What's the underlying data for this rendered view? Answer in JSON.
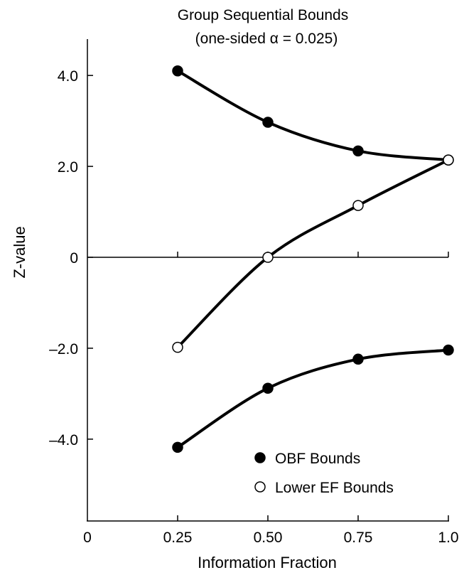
{
  "chart_data": {
    "type": "line",
    "title": "Group Sequential Bounds",
    "subtitle": "(one-sided α = 0.025)",
    "xlabel": "Information Fraction",
    "ylabel": "Z-value",
    "xlim": [
      0,
      1.0
    ],
    "ylim": [
      -5.8,
      4.8
    ],
    "x_ticks": [
      {
        "value": 0,
        "label": "0"
      },
      {
        "value": 0.25,
        "label": "0.25"
      },
      {
        "value": 0.5,
        "label": "0.50"
      },
      {
        "value": 0.75,
        "label": "0.75"
      },
      {
        "value": 1.0,
        "label": "1.0"
      }
    ],
    "y_ticks": [
      {
        "value": 4,
        "label": "4.0"
      },
      {
        "value": 2,
        "label": "2.0"
      },
      {
        "value": 0,
        "label": "0"
      },
      {
        "value": -2,
        "label": "–2.0"
      },
      {
        "value": -4,
        "label": "–4.0"
      }
    ],
    "zero_line": true,
    "grid": false,
    "legend_position": "bottom-right",
    "series": [
      {
        "name": "OBF Bounds",
        "marker": "filled-circle",
        "curves": [
          {
            "x": [
              0.25,
              0.5,
              0.75,
              1.0
            ],
            "y": [
              4.1,
              2.97,
              2.34,
              2.14
            ]
          },
          {
            "x": [
              0.25,
              0.5,
              0.75,
              1.0
            ],
            "y": [
              -4.18,
              -2.88,
              -2.24,
              -2.04
            ]
          }
        ]
      },
      {
        "name": "Lower EF Bounds",
        "marker": "open-circle",
        "curves": [
          {
            "x": [
              0.25,
              0.5,
              0.75,
              1.0
            ],
            "y": [
              -1.98,
              0.0,
              1.14,
              2.14
            ]
          }
        ]
      }
    ],
    "colors": {
      "line": "#000000",
      "filled_marker": "#000000",
      "open_marker_fill": "#ffffff"
    }
  }
}
